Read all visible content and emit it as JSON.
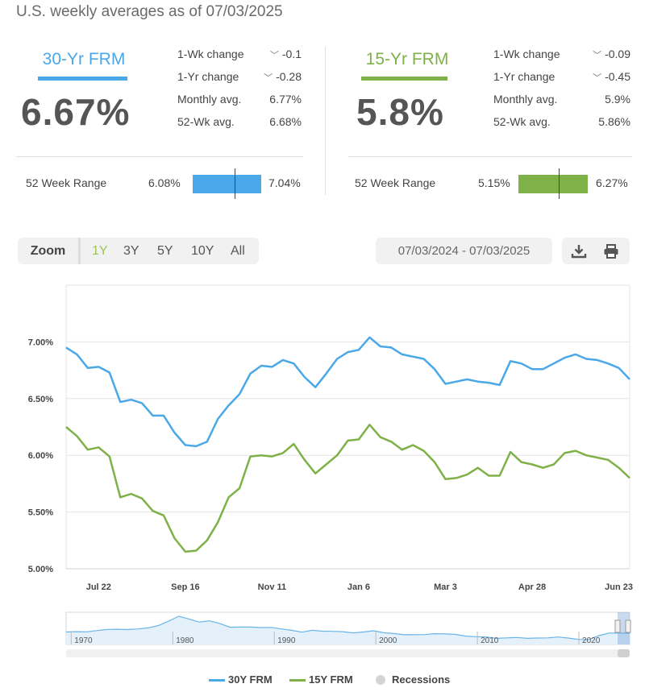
{
  "subtitle": "U.S. weekly averages as of 07/03/2025",
  "products": [
    {
      "name": "30-Yr FRM",
      "rate": "6.67%",
      "color": "#4aa8e8",
      "stats": [
        {
          "label": "1-Wk change",
          "value": "-0.1",
          "arrow": true
        },
        {
          "label": "1-Yr change",
          "value": "-0.28",
          "arrow": true
        },
        {
          "label": "Monthly avg.",
          "value": "6.77%",
          "arrow": false
        },
        {
          "label": "52-Wk avg.",
          "value": "6.68%",
          "arrow": false
        }
      ],
      "range": {
        "label": "52 Week Range",
        "low": "6.08%",
        "high": "7.04%",
        "current_fraction": 0.61
      }
    },
    {
      "name": "15-Yr FRM",
      "rate": "5.8%",
      "color": "#7eb148",
      "stats": [
        {
          "label": "1-Wk change",
          "value": "-0.09",
          "arrow": true
        },
        {
          "label": "1-Yr change",
          "value": "-0.45",
          "arrow": true
        },
        {
          "label": "Monthly avg.",
          "value": "5.9%",
          "arrow": false
        },
        {
          "label": "52-Wk avg.",
          "value": "5.86%",
          "arrow": false
        }
      ],
      "range": {
        "label": "52 Week Range",
        "low": "5.15%",
        "high": "6.27%",
        "current_fraction": 0.58
      }
    }
  ],
  "zoom": {
    "label": "Zoom",
    "options": [
      "1Y",
      "3Y",
      "5Y",
      "10Y",
      "All"
    ],
    "active": "1Y"
  },
  "date_range": "07/03/2024 - 07/03/2025",
  "tools": {
    "download_icon": "download-icon",
    "print_icon": "print-icon"
  },
  "chart_data": {
    "type": "line",
    "x_tick_labels": [
      "Jul 22",
      "Sep 16",
      "Nov 11",
      "Jan 6",
      "Mar 3",
      "Apr 28",
      "Jun 23"
    ],
    "y_tick_labels": [
      "5.00%",
      "5.50%",
      "6.00%",
      "6.50%",
      "7.00%"
    ],
    "y_ticks": [
      5.0,
      5.5,
      6.0,
      6.5,
      7.0
    ],
    "ylim": [
      5.0,
      7.5
    ],
    "grid": true,
    "legend_position": "bottom-center",
    "series": [
      {
        "name": "30Y FRM",
        "color": "#4aa8e8",
        "values": [
          6.95,
          6.89,
          6.77,
          6.78,
          6.73,
          6.47,
          6.49,
          6.46,
          6.35,
          6.35,
          6.2,
          6.09,
          6.08,
          6.12,
          6.32,
          6.44,
          6.54,
          6.72,
          6.79,
          6.78,
          6.84,
          6.81,
          6.69,
          6.6,
          6.72,
          6.85,
          6.91,
          6.93,
          7.04,
          6.96,
          6.95,
          6.89,
          6.87,
          6.85,
          6.76,
          6.63,
          6.65,
          6.67,
          6.65,
          6.64,
          6.62,
          6.83,
          6.81,
          6.76,
          6.76,
          6.81,
          6.86,
          6.89,
          6.85,
          6.84,
          6.81,
          6.77,
          6.67
        ]
      },
      {
        "name": "15Y FRM",
        "color": "#7eb148",
        "values": [
          6.25,
          6.17,
          6.05,
          6.07,
          5.99,
          5.63,
          5.66,
          5.62,
          5.51,
          5.47,
          5.27,
          5.15,
          5.16,
          5.25,
          5.41,
          5.63,
          5.71,
          5.99,
          6.0,
          5.99,
          6.02,
          6.1,
          5.96,
          5.84,
          5.92,
          6.0,
          6.13,
          6.14,
          6.27,
          6.16,
          6.12,
          6.05,
          6.09,
          6.04,
          5.94,
          5.79,
          5.8,
          5.83,
          5.89,
          5.82,
          5.82,
          6.03,
          5.94,
          5.92,
          5.89,
          5.92,
          6.02,
          6.04,
          6.0,
          5.98,
          5.96,
          5.89,
          5.8
        ]
      }
    ],
    "navigator": {
      "tick_labels": [
        "1970",
        "1980",
        "1990",
        "2000",
        "2010",
        "2020"
      ],
      "values": [
        7.4,
        7.6,
        7.5,
        8.2,
        8.9,
        9.0,
        8.8,
        9.2,
        9.8,
        11.2,
        13.7,
        16.6,
        15.0,
        13.2,
        13.9,
        12.4,
        10.2,
        10.3,
        10.3,
        10.0,
        10.1,
        9.2,
        8.4,
        7.3,
        8.4,
        7.9,
        7.8,
        7.6,
        6.9,
        7.4,
        8.1,
        7.0,
        6.5,
        5.8,
        5.8,
        5.9,
        6.4,
        6.3,
        6.0,
        5.0,
        4.7,
        4.5,
        3.7,
        4.0,
        4.2,
        3.7,
        3.9,
        4.0,
        4.5,
        3.9,
        3.1,
        3.0,
        5.3,
        6.8,
        6.8,
        6.7
      ]
    },
    "legend": [
      {
        "name": "30Y FRM",
        "color": "#4aa8e8",
        "kind": "line"
      },
      {
        "name": "15Y FRM",
        "color": "#7eb148",
        "kind": "line"
      },
      {
        "name": "Recessions",
        "color": "#d4d4d4",
        "kind": "dot"
      }
    ]
  }
}
